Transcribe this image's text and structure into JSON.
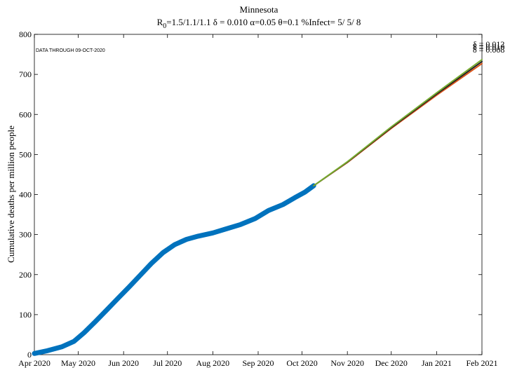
{
  "chart_data": {
    "type": "line",
    "title": "Minnesota",
    "subtitle": {
      "r0_prefix": "R",
      "r0_sub": "0",
      "r0_rest": "=1.5/1.1/1.1  ",
      "delta": "δ = 0.010  ",
      "alpha": "α=0.05  ",
      "theta": "θ=0.1  ",
      "infect": "%Infect= 5/ 5/ 8"
    },
    "annotation": "DATA THROUGH 09-OCT-2020",
    "ylabel": "Cumulative deaths per million people",
    "xlabel": "",
    "ylim": [
      0,
      800
    ],
    "yticks": [
      0,
      100,
      200,
      300,
      400,
      500,
      600,
      700,
      800
    ],
    "xlim": [
      "2020-04-01",
      "2021-02-01"
    ],
    "xticks": [
      {
        "date": "2020-04-01",
        "label": "Apr 2020"
      },
      {
        "date": "2020-05-01",
        "label": "May 2020"
      },
      {
        "date": "2020-06-01",
        "label": "Jun 2020"
      },
      {
        "date": "2020-07-01",
        "label": "Jul 2020"
      },
      {
        "date": "2020-08-01",
        "label": "Aug 2020"
      },
      {
        "date": "2020-09-01",
        "label": "Sep 2020"
      },
      {
        "date": "2020-10-01",
        "label": "Oct 2020"
      },
      {
        "date": "2020-11-01",
        "label": "Nov 2020"
      },
      {
        "date": "2020-12-01",
        "label": "Dec 2020"
      },
      {
        "date": "2021-01-01",
        "label": "Jan 2021"
      },
      {
        "date": "2021-02-01",
        "label": "Feb 2021"
      }
    ],
    "grid": false,
    "series": [
      {
        "color": "#0072bd",
        "points": [
          [
            "2020-04-01",
            3
          ],
          [
            "2020-04-10",
            10
          ],
          [
            "2020-04-20",
            20
          ],
          [
            "2020-04-28",
            33
          ],
          [
            "2020-05-05",
            55
          ],
          [
            "2020-05-12",
            80
          ],
          [
            "2020-05-20",
            110
          ],
          [
            "2020-05-28",
            140
          ],
          [
            "2020-06-05",
            170
          ],
          [
            "2020-06-12",
            197
          ],
          [
            "2020-06-20",
            228
          ],
          [
            "2020-06-28",
            255
          ],
          [
            "2020-07-06",
            275
          ],
          [
            "2020-07-14",
            288
          ],
          [
            "2020-07-22",
            296
          ],
          [
            "2020-08-01",
            304
          ],
          [
            "2020-08-10",
            314
          ],
          [
            "2020-08-20",
            325
          ],
          [
            "2020-08-30",
            340
          ],
          [
            "2020-09-08",
            360
          ],
          [
            "2020-09-18",
            375
          ],
          [
            "2020-09-26",
            392
          ],
          [
            "2020-10-03",
            406
          ],
          [
            "2020-10-09",
            422
          ]
        ]
      },
      {
        "label": "δ = 0.008",
        "color": "#d95319",
        "points": [
          [
            "2020-10-09",
            422
          ],
          [
            "2020-11-01",
            480
          ],
          [
            "2020-12-01",
            565
          ],
          [
            "2021-01-01",
            648
          ],
          [
            "2021-02-01",
            727
          ]
        ]
      },
      {
        "label": "δ = 0.010",
        "color": "#222222",
        "points": [
          [
            "2020-10-09",
            422
          ],
          [
            "2020-11-01",
            481
          ],
          [
            "2020-12-01",
            567
          ],
          [
            "2021-01-01",
            651
          ],
          [
            "2021-02-01",
            732
          ]
        ]
      },
      {
        "label": "δ = 0.012",
        "color": "#77ac30",
        "points": [
          [
            "2020-10-09",
            422
          ],
          [
            "2020-11-01",
            482
          ],
          [
            "2020-12-01",
            569
          ],
          [
            "2021-01-01",
            654
          ],
          [
            "2021-02-01",
            737
          ]
        ]
      }
    ]
  }
}
